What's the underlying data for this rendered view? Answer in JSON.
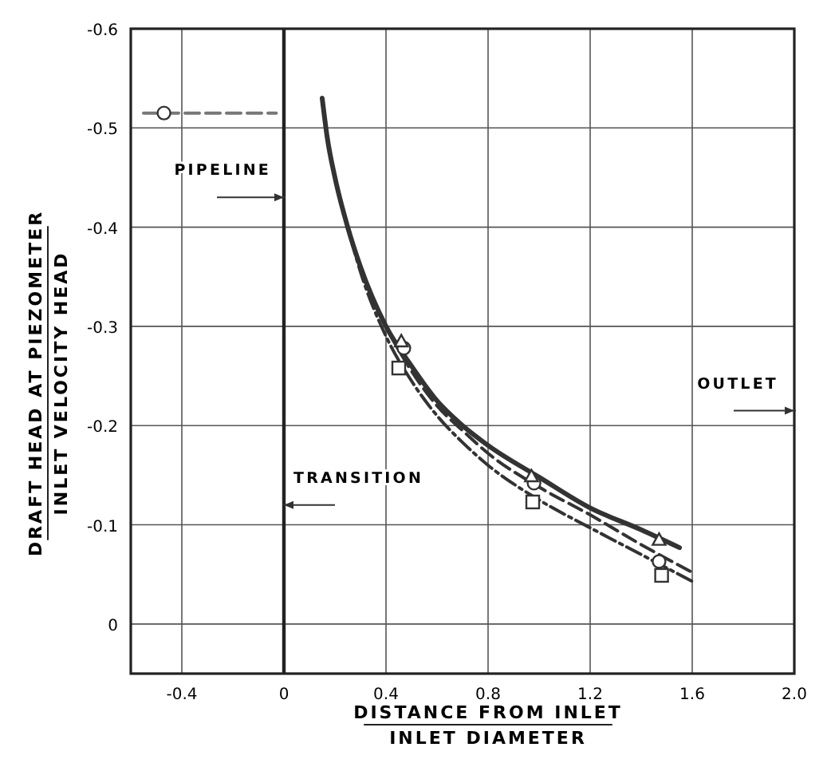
{
  "chart_data": {
    "type": "line",
    "xlabel": "DISTANCE FROM INLET\nINLET DIAMETER",
    "ylabel": "DRAFT HEAD AT PIEZOMETER\nINLET VELOCITY HEAD",
    "xlim": [
      -0.6,
      2.0
    ],
    "xticks": [
      -0.4,
      0,
      0.4,
      0.8,
      1.2,
      1.6,
      {
        "value": 2,
        "label": "2.0"
      }
    ],
    "ylim": [
      0.05,
      -0.6
    ],
    "yticks": [
      -0.6,
      -0.5,
      -0.4,
      -0.3,
      -0.2,
      -0.1,
      0
    ],
    "grid": true,
    "series": [
      {
        "color": "#333333",
        "line_style": "solid",
        "marker": "none",
        "x": [
          0.15,
          0.17,
          0.2,
          0.25,
          0.3,
          0.4,
          0.5,
          0.6,
          0.7,
          0.8,
          1.0,
          1.2,
          1.4,
          1.55
        ],
        "values": [
          -0.53,
          -0.49,
          -0.45,
          -0.4,
          -0.36,
          -0.3,
          -0.26,
          -0.225,
          -0.2,
          -0.18,
          -0.148,
          -0.117,
          -0.095,
          -0.077
        ]
      },
      {
        "type": "line",
        "color": "#333333",
        "line_style": "dashed",
        "marker": "none",
        "x": [
          0.15,
          0.17,
          0.2,
          0.25,
          0.3,
          0.4,
          0.5,
          0.6,
          0.7,
          0.8,
          1.0,
          1.2,
          1.4,
          1.6
        ],
        "values": [
          -0.53,
          -0.49,
          -0.45,
          -0.4,
          -0.36,
          -0.3,
          -0.255,
          -0.22,
          -0.195,
          -0.172,
          -0.138,
          -0.11,
          -0.08,
          -0.052
        ]
      },
      {
        "type": "line",
        "color": "#333333",
        "line_style": "dotted",
        "marker": "none",
        "x": [
          0.15,
          0.17,
          0.2,
          0.25,
          0.3,
          0.4,
          0.5,
          0.6,
          0.7,
          0.8,
          1.0,
          1.2,
          1.4,
          1.6
        ],
        "values": [
          -0.53,
          -0.49,
          -0.45,
          -0.4,
          -0.355,
          -0.29,
          -0.245,
          -0.21,
          -0.183,
          -0.16,
          -0.125,
          -0.097,
          -0.07,
          -0.043
        ]
      },
      {
        "type": "scatter",
        "color": "#333333",
        "marker": "circle",
        "x": [
          0.47,
          0.98,
          1.47
        ],
        "values": [
          -0.278,
          -0.142,
          -0.063
        ]
      },
      {
        "type": "scatter",
        "color": "#333333",
        "marker": "triangle",
        "x": [
          0.46,
          0.97,
          1.47
        ],
        "values": [
          -0.285,
          -0.149,
          -0.085
        ]
      },
      {
        "type": "scatter",
        "color": "#333333",
        "marker": "square",
        "x": [
          0.45,
          0.975,
          1.48
        ],
        "values": [
          -0.258,
          -0.123,
          -0.049
        ]
      },
      {
        "type": "line",
        "color": "#777777",
        "line_style": "dashed",
        "marker": "none",
        "x": [
          -0.55,
          -0.03
        ],
        "values": [
          -0.515,
          -0.515
        ]
      },
      {
        "type": "scatter",
        "color": "#333333",
        "marker": "circle",
        "x": [
          -0.47
        ],
        "values": [
          -0.515
        ]
      }
    ],
    "ref_lines": [
      {
        "axis": "x",
        "value": 0,
        "color": "#222222"
      }
    ],
    "annotations": [
      "PIPELINE",
      "TRANSITION",
      "OUTLET"
    ]
  }
}
